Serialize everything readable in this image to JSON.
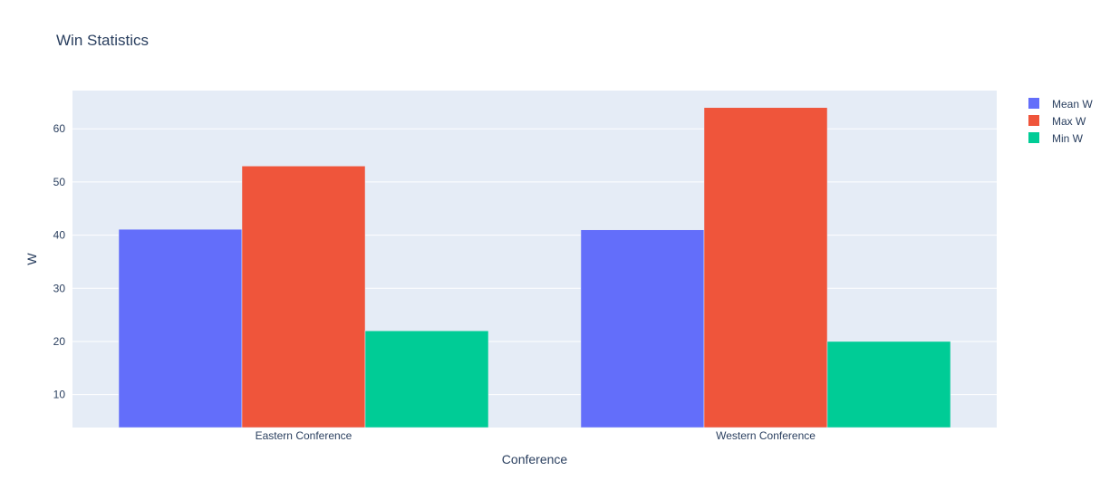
{
  "chart_data": {
    "type": "bar",
    "title": "Win Statistics",
    "xlabel": "Conference",
    "ylabel": "W",
    "categories": [
      "Eastern Conference",
      "Western Conference"
    ],
    "series": [
      {
        "name": "Mean W",
        "values": [
          41.1,
          41.0
        ],
        "color": "#636efa"
      },
      {
        "name": "Max W",
        "values": [
          53,
          64
        ],
        "color": "#ef553b"
      },
      {
        "name": "Min W",
        "values": [
          22,
          20
        ],
        "color": "#00cc96"
      }
    ],
    "ylim": [
      3.8,
      67.2
    ],
    "yticks": [
      10,
      20,
      30,
      40,
      50,
      60
    ],
    "grid": true,
    "legend_position": "top-right",
    "plot_background": "#e5ecf6"
  }
}
